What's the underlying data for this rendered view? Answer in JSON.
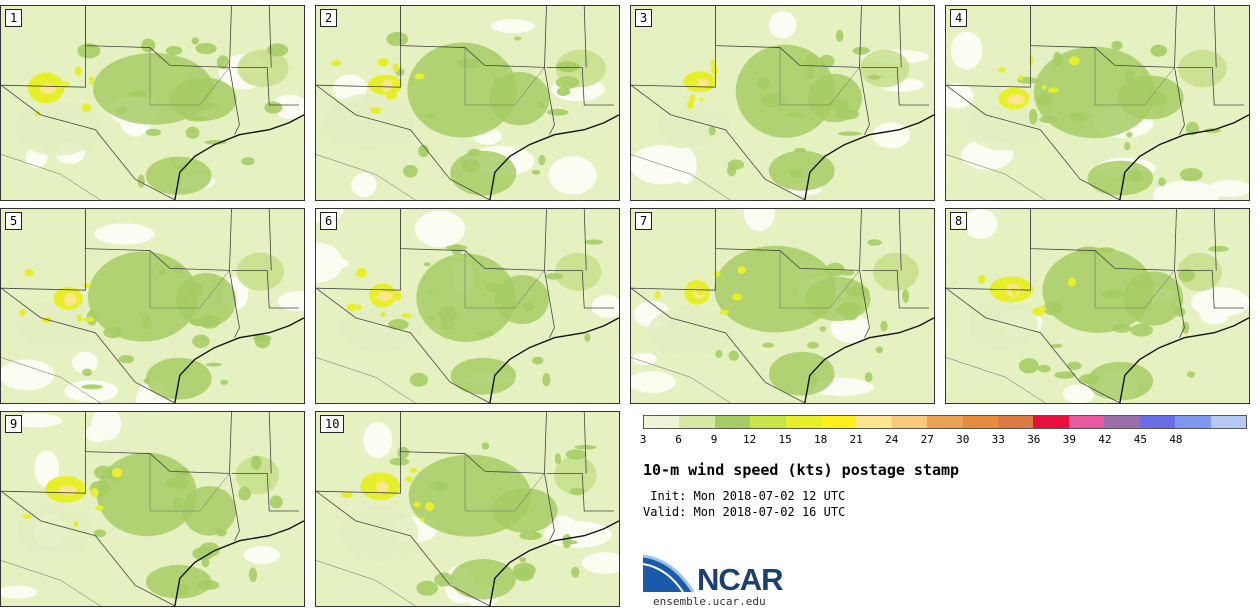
{
  "panels": [
    "1",
    "2",
    "3",
    "4",
    "5",
    "6",
    "7",
    "8",
    "9",
    "10"
  ],
  "colorbar": {
    "colors": [
      "#eef5d6",
      "#d7eaa5",
      "#a6cd65",
      "#c8e44b",
      "#e7ef2a",
      "#fbef1c",
      "#fbe68e",
      "#f6c97c",
      "#eaa355",
      "#e68c3d",
      "#dc7a43",
      "#e9103d",
      "#e85a9e",
      "#9a6fa9",
      "#6a6de6",
      "#7e98f0",
      "#b5c9f7"
    ],
    "ticks": [
      "3",
      "6",
      "9",
      "12",
      "15",
      "18",
      "21",
      "24",
      "27",
      "30",
      "33",
      "36",
      "39",
      "42",
      "45",
      "48"
    ]
  },
  "title": "10-m wind speed (kts) postage stamp",
  "init": " Init: Mon 2018-07-02 12 UTC",
  "valid": "Valid: Mon 2018-07-02 16 UTC",
  "logo": {
    "name": "NCAR",
    "url": "ensemble.ucar.edu"
  }
}
